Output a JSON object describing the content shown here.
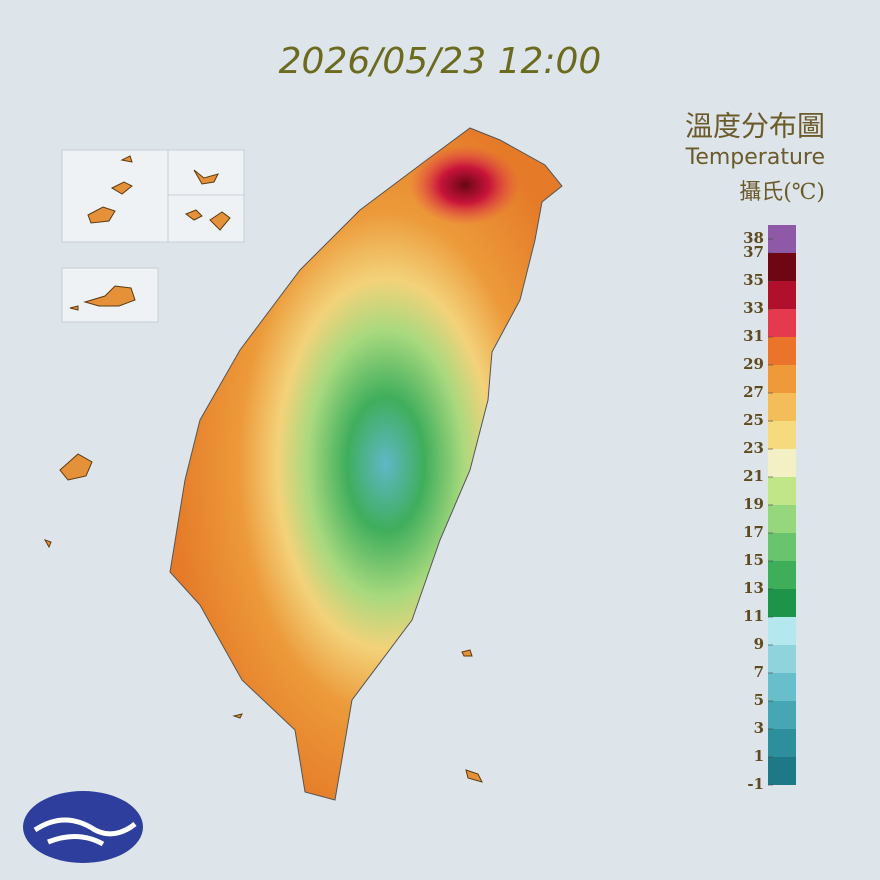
{
  "timestamp": "2026/05/23 12:00",
  "legend": {
    "title": "溫度分布圖",
    "subtitle": "Temperature",
    "unit": "攝氏(℃)",
    "range": [
      -1,
      39
    ],
    "ticks": [
      38,
      37,
      35,
      33,
      31,
      29,
      27,
      25,
      23,
      21,
      19,
      17,
      15,
      13,
      11,
      9,
      7,
      5,
      3,
      1,
      -1
    ],
    "band_colors": [
      "#1f7886",
      "#2e8f9c",
      "#47a6b4",
      "#68bfcb",
      "#8fd3dd",
      "#b4e8ee",
      "#1d944a",
      "#3eae5a",
      "#69c46e",
      "#96d67c",
      "#c0e688",
      "#f2f0c4",
      "#f6da7e",
      "#f3bd5a",
      "#ee9a38",
      "#e9742a",
      "#e5394f",
      "#b0102c",
      "#6e0614",
      "#8e5aa8"
    ]
  }
}
